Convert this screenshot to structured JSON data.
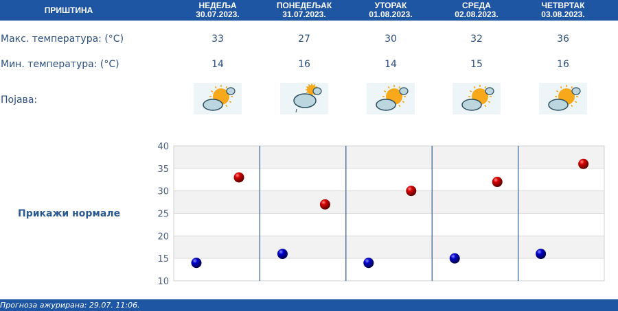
{
  "header": {
    "city": "ПРИШТИНА"
  },
  "days": [
    {
      "name": "НЕДЕЉА",
      "date": "30.07.2023.",
      "max": "33",
      "min": "14",
      "icon": "sun-cloud-icon"
    },
    {
      "name": "ПОНЕДЕЉАК",
      "date": "31.07.2023.",
      "max": "27",
      "min": "16",
      "icon": "cloud-sun-rain-icon"
    },
    {
      "name": "УТОРАК",
      "date": "01.08.2023.",
      "max": "30",
      "min": "14",
      "icon": "sun-cloud-icon"
    },
    {
      "name": "СРЕДА",
      "date": "02.08.2023.",
      "max": "32",
      "min": "15",
      "icon": "sun-cloud-icon"
    },
    {
      "name": "ЧЕТВРТАК",
      "date": "03.08.2023.",
      "max": "36",
      "min": "16",
      "icon": "sun-cloud-icon"
    }
  ],
  "labels": {
    "max": "Макс. температура: (°C)",
    "min": "Мин. температура: (°C)",
    "phenomenon": "Појава:"
  },
  "normals_link": "Прикажи нормале",
  "footer": "Прогноза ажурирана:  29.07. 11:06.",
  "colors": {
    "header": "#1f56a3",
    "max_dot": "#d40000",
    "min_dot": "#0000c8"
  },
  "chart_data": {
    "type": "scatter",
    "categories": [
      "30.07.2023.",
      "31.07.2023.",
      "01.08.2023.",
      "02.08.2023.",
      "03.08.2023."
    ],
    "series": [
      {
        "values": [
          14,
          16,
          14,
          15,
          16
        ],
        "color": "#0000c8"
      },
      {
        "values": [
          33,
          27,
          30,
          32,
          36
        ],
        "color": "#d40000"
      }
    ],
    "ylim": [
      10,
      40
    ],
    "yticks": [
      "10",
      "15",
      "20",
      "25",
      "30",
      "35",
      "40"
    ],
    "grid": true
  }
}
